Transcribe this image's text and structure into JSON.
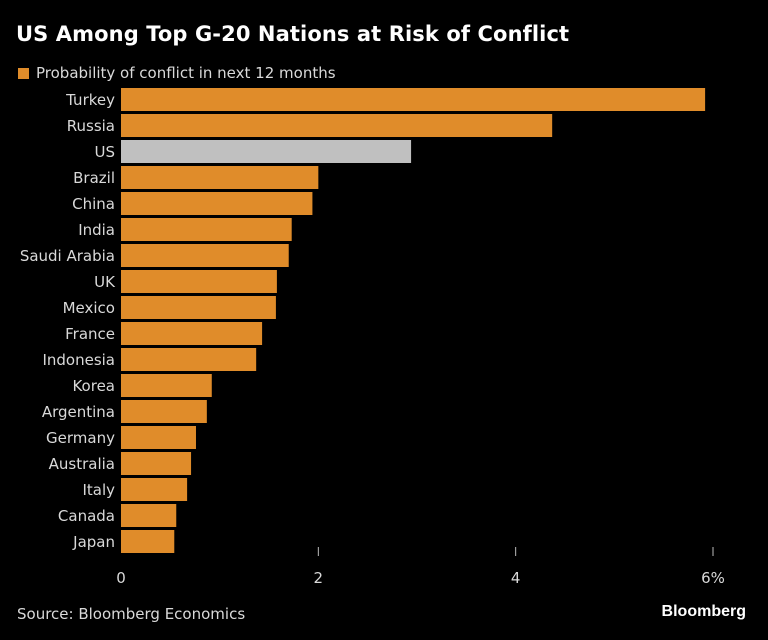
{
  "chart_data": {
    "type": "bar",
    "orientation": "horizontal",
    "title": "US Among Top G-20 Nations at Risk of Conflict",
    "legend": [
      {
        "label": "Probability of conflict in next 12 months",
        "color": "#e08c2a"
      }
    ],
    "legend_position": "top-left",
    "categories": [
      "Turkey",
      "Russia",
      "US",
      "Brazil",
      "China",
      "India",
      "Saudi Arabia",
      "UK",
      "Mexico",
      "France",
      "Indonesia",
      "Korea",
      "Argentina",
      "Germany",
      "Australia",
      "Italy",
      "Canada",
      "Japan"
    ],
    "values": [
      5.92,
      4.37,
      2.94,
      2.0,
      1.94,
      1.73,
      1.7,
      1.58,
      1.57,
      1.43,
      1.37,
      0.92,
      0.87,
      0.76,
      0.71,
      0.67,
      0.56,
      0.54
    ],
    "highlight": "US",
    "colors": {
      "default": "#e08c2a",
      "highlight": "#c0c0c0"
    },
    "xlabel": "",
    "ylabel": "",
    "xlim": [
      0,
      6
    ],
    "xticks": [
      0,
      2,
      4,
      6
    ],
    "xtick_labels": [
      "0",
      "2",
      "4",
      "6%"
    ],
    "grid": false,
    "source": "Source: Bloomberg Economics",
    "brand": "Bloomberg"
  }
}
